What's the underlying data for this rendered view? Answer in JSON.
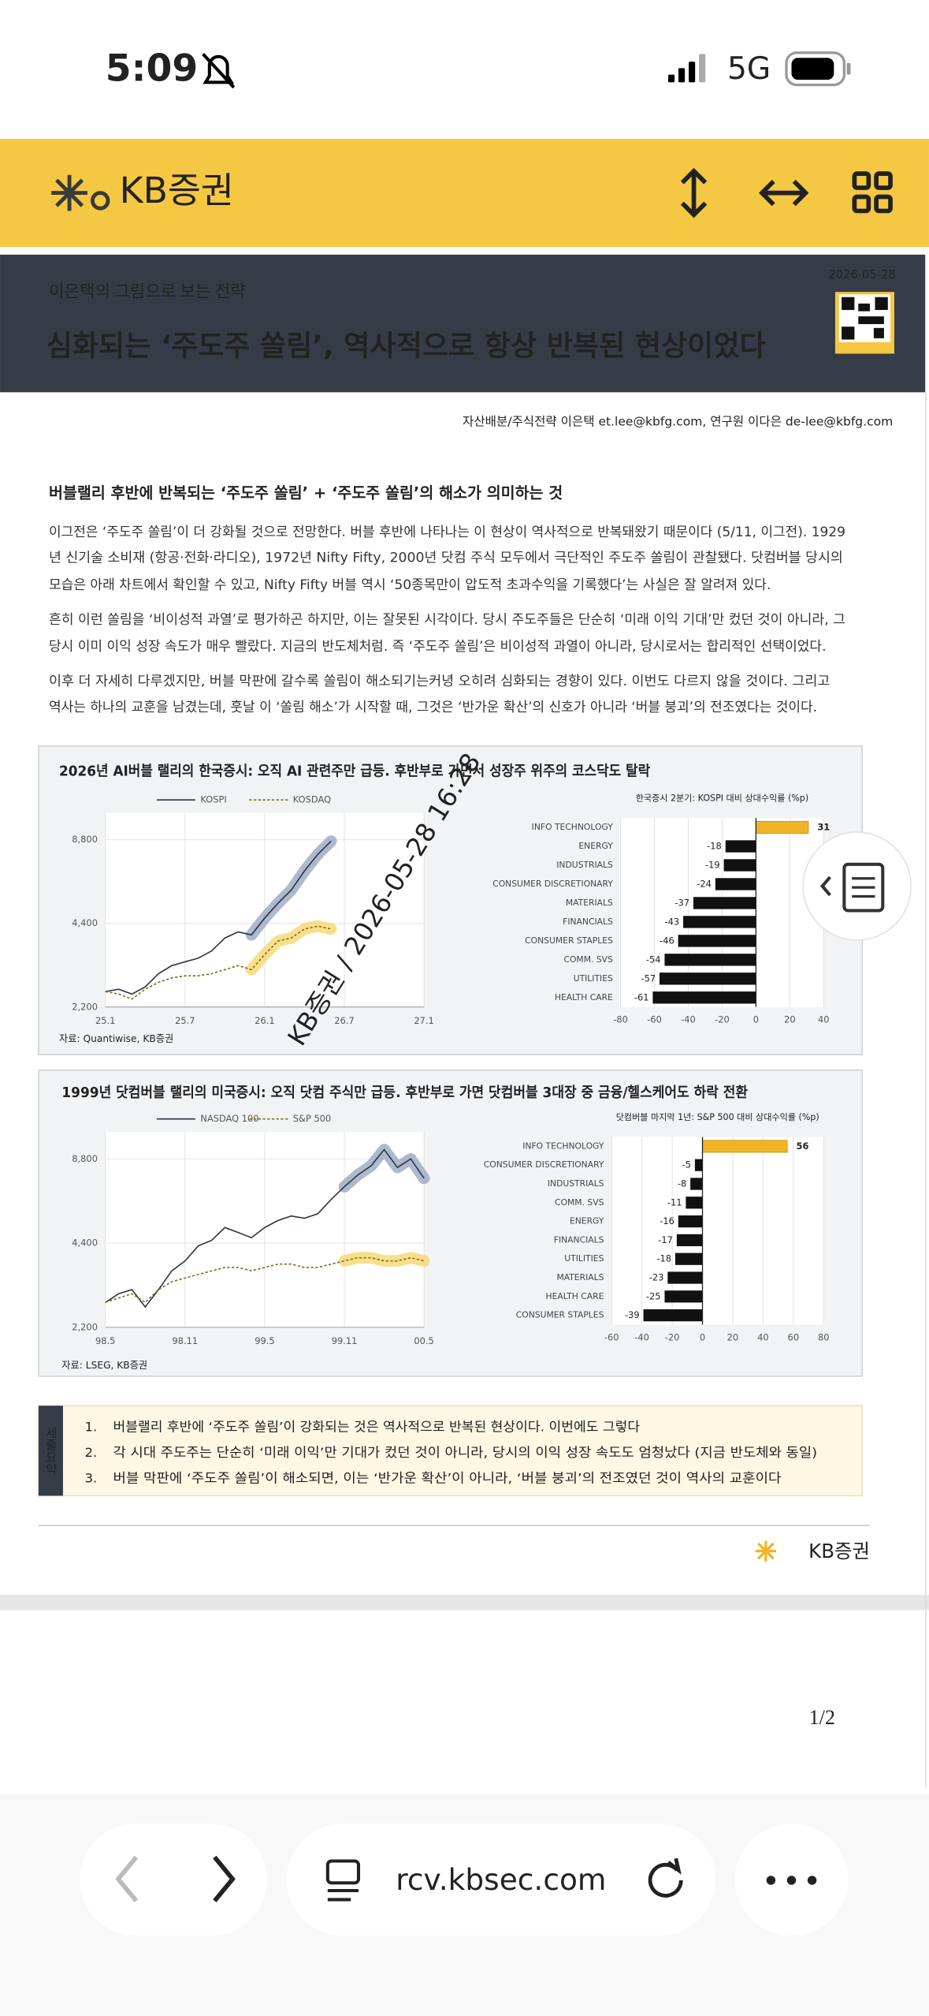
{
  "status_bar": {
    "time": "5:09",
    "network": "5G"
  },
  "toolbar": {
    "brand": "KB증권"
  },
  "report": {
    "date": "2026-05-28",
    "series_title": "이은택의 그림으로 보는 전략",
    "title": "심화되는 ‘주도주 쏠림’, 역사적으로 항상 반복된 현상이었다",
    "authors": "자산배분/주식전략 이은택 et.lee@kbfg.com,  연구원 이다은 de-lee@kbfg.com",
    "heading": "버블랠리 후반에 반복되는 ‘주도주 쏠림’ + ‘주도주 쏠림’의 해소가 의미하는 것",
    "paragraphs": [
      [
        "이그전은 ‘주도주 쏠림’이 더 강화될 것으로 전망한다. 버블 후반에 나타나는 이 현상이 역사적으로 반복돼왔기 때문이다 (5/11, 이그전). 1929",
        "년 신기술 소비재 (항공·전화·라디오), 1972년 Nifty Fifty, 2000년 닷컴 주식 모두에서 극단적인 주도주 쏠림이 관찰됐다. 닷컴버블 당시의",
        "모습은 아래 차트에서 확인할 수 있고, Nifty Fifty 버블 역시 ‘50종목만이 압도적 초과수익을 기록했다’는 사실은 잘 알려져 있다."
      ],
      [
        "흔히 이런 쏠림을 ‘비이성적 과열’로 평가하곤 하지만, 이는 잘못된 시각이다. 당시 주도주들은 단순히 ‘미래 이익 기대’만 컸던 것이 아니라, 그",
        "당시 이미 이익 성장 속도가 매우 빨랐다. 지금의 반도체처럼. 즉 ‘주도주 쏠림’은 비이성적 과열이 아니라, 당시로서는 합리적인 선택이었다."
      ],
      [
        "이후 더 자세히 다루겠지만, 버블 막판에 갈수록 쏠림이 해소되기는커녕 오히려 심화되는 경향이 있다. 이번도 다르지 않을 것이다. 그리고",
        "역사는 하나의 교훈을 남겼는데, 훗날 이 ‘쏠림 해소’가 시작할 때, 그것은 ‘반가운 확산’의 신호가 아니라 ‘버블 붕괴’의 전조였다는 것이다."
      ]
    ],
    "figures": [
      {
        "title": "2026년 AI버블 랠리의 한국증시: 오직 AI 관련주만 급등. 후반부로 가면서 성장주 위주의 코스닥도 탈락",
        "source": "자료: Quantiwise, KB증권"
      },
      {
        "title": "1999년 닷컴버블 랠리의 미국증시: 오직 닷컴 주식만 급등. 후반부로 가면 닷컴버블 3대장 중 금융/헬스케어도 하락 전환",
        "source": "자료: LSEG, KB증권"
      }
    ],
    "summary": {
      "label": "세줄요약",
      "markers": [
        "1.",
        "2.",
        "3."
      ],
      "items": [
        "버블랠리 후반에 ‘주도주 쏠림’이 강화되는 것은 역사적으로 반복된 현상이다. 이번에도 그렇다",
        "각 시대 주도주는 단순히 ‘미래 이익’만 기대가 컸던 것이 아니라, 당시의 이익 성장 속도도 엄청났다 (지금 반도체와 동일)",
        "버블 막판에 ‘주도주 쏠림’이 해소되면, 이는 ‘반가운 확산’이 아니라, ‘버블 붕괴’의 전조였던 것이 역사의 교훈이다"
      ]
    },
    "footer_brand": "KB증권",
    "watermark": "KB증권 / 2026-05-28 16:28",
    "page": "1/2"
  },
  "browser": {
    "url": "rcv.kbsec.com"
  },
  "chart_data": [
    {
      "type": "line",
      "log_scale": true,
      "grid": true,
      "xlim": [
        0,
        24
      ],
      "ylim": [
        2200,
        11000
      ],
      "xticks": [
        {
          "value": 0,
          "label": "25.1"
        },
        {
          "value": 6,
          "label": "25.7"
        },
        {
          "value": 12,
          "label": "26.1"
        },
        {
          "value": 18,
          "label": "26.7"
        },
        {
          "value": 24,
          "label": "27.1"
        }
      ],
      "yticks": [
        {
          "value": 2200,
          "label": "2,200"
        },
        {
          "value": 4400,
          "label": "4,400"
        },
        {
          "value": 8800,
          "label": "8,800"
        }
      ],
      "series": [
        {
          "name": "KOSPI",
          "color": "#2e3648",
          "line_style": "solid",
          "highlight_color": "#9aa7c2",
          "x": [
            0,
            1,
            2,
            3,
            4,
            5,
            6,
            7,
            8,
            9,
            10,
            11,
            12,
            13,
            14,
            15,
            16,
            17
          ],
          "values": [
            2500,
            2550,
            2450,
            2600,
            2900,
            3100,
            3200,
            3300,
            3500,
            3900,
            4100,
            4000,
            4600,
            5200,
            5800,
            6800,
            7800,
            8700
          ]
        },
        {
          "name": "KOSDAQ",
          "color": "#8a6a1f",
          "line_style": "dashed",
          "highlight_color": "#f5d76e",
          "x": [
            0,
            1,
            2,
            3,
            4,
            5,
            6,
            7,
            8,
            9,
            10,
            11,
            12,
            13,
            14,
            15,
            16,
            17
          ],
          "values": [
            2500,
            2450,
            2350,
            2550,
            2700,
            2800,
            2850,
            2850,
            2900,
            3000,
            3100,
            3000,
            3400,
            3800,
            3900,
            4200,
            4300,
            4200
          ]
        }
      ]
    },
    {
      "type": "bar",
      "orientation": "horizontal",
      "title": "한국증시 2분기: KOSPI 대비 상대수익률 (%p)",
      "grid": true,
      "categories": [
        "INFO TECHNOLOGY",
        "ENERGY",
        "INDUSTRIALS",
        "CONSUMER DISCRETIONARY",
        "MATERIALS",
        "FINANCIALS",
        "CONSUMER STAPLES",
        "COMM. SVS",
        "UTILITIES",
        "HEALTH CARE"
      ],
      "values": [
        31,
        -18,
        -19,
        -24,
        -37,
        -43,
        -46,
        -54,
        -57,
        -61
      ],
      "colors": [
        "#f0b429",
        "#111111",
        "#111111",
        "#111111",
        "#111111",
        "#111111",
        "#111111",
        "#111111",
        "#111111",
        "#111111"
      ],
      "positive_label_color": "#e03030",
      "xlim": [
        -80,
        40
      ],
      "xticks": [
        -80,
        -60,
        -40,
        -20,
        0,
        20,
        40
      ]
    },
    {
      "type": "line",
      "log_scale": true,
      "grid": true,
      "xlim": [
        0,
        24
      ],
      "ylim": [
        2200,
        11000
      ],
      "xticks": [
        {
          "value": 0,
          "label": "98.5"
        },
        {
          "value": 6,
          "label": "98.11"
        },
        {
          "value": 12,
          "label": "99.5"
        },
        {
          "value": 18,
          "label": "99.11"
        },
        {
          "value": 24,
          "label": "00.5"
        }
      ],
      "yticks": [
        {
          "value": 2200,
          "label": "2,200"
        },
        {
          "value": 4400,
          "label": "4,400"
        },
        {
          "value": 8800,
          "label": "8,800"
        }
      ],
      "series": [
        {
          "name": "NASDAQ 100",
          "color": "#2e3648",
          "line_style": "solid",
          "highlight_color": "#9aa7c2",
          "x": [
            0,
            1,
            2,
            3,
            4,
            5,
            6,
            7,
            8,
            9,
            10,
            11,
            12,
            13,
            14,
            15,
            16,
            17,
            18,
            19,
            20,
            21,
            22,
            23,
            24
          ],
          "values": [
            2700,
            2900,
            3000,
            2600,
            3000,
            3500,
            3800,
            4300,
            4500,
            5000,
            4800,
            4600,
            5000,
            5300,
            5500,
            5400,
            5600,
            6300,
            7000,
            7700,
            8300,
            9500,
            8200,
            8800,
            7500
          ]
        },
        {
          "name": "S&P 500",
          "color": "#8a6a1f",
          "line_style": "dashed",
          "highlight_color": "#f5d76e",
          "x": [
            0,
            1,
            2,
            3,
            4,
            5,
            6,
            7,
            8,
            9,
            10,
            11,
            12,
            13,
            14,
            15,
            16,
            17,
            18,
            19,
            20,
            21,
            22,
            23,
            24
          ],
          "values": [
            2700,
            2800,
            2900,
            2700,
            3000,
            3200,
            3300,
            3400,
            3500,
            3600,
            3600,
            3500,
            3600,
            3700,
            3700,
            3600,
            3600,
            3700,
            3800,
            3900,
            3900,
            3800,
            3800,
            3900,
            3800
          ]
        }
      ]
    },
    {
      "type": "bar",
      "orientation": "horizontal",
      "title": "닷컴버블 마지막 1년: S&P 500 대비 상대수익률 (%p)",
      "grid": true,
      "categories": [
        "INFO TECHNOLOGY",
        "CONSUMER DISCRETIONARY",
        "INDUSTRIALS",
        "COMM. SVS",
        "ENERGY",
        "FINANCIALS",
        "UTILITIES",
        "MATERIALS",
        "HEALTH CARE",
        "CONSUMER STAPLES"
      ],
      "values": [
        56,
        -5,
        -8,
        -11,
        -16,
        -17,
        -18,
        -23,
        -25,
        -39
      ],
      "colors": [
        "#f0b429",
        "#111111",
        "#111111",
        "#111111",
        "#111111",
        "#111111",
        "#111111",
        "#111111",
        "#111111",
        "#111111"
      ],
      "positive_label_color": "#e03030",
      "xlim": [
        -60,
        80
      ],
      "xticks": [
        -60,
        -40,
        -20,
        0,
        20,
        40,
        60,
        80
      ]
    }
  ]
}
